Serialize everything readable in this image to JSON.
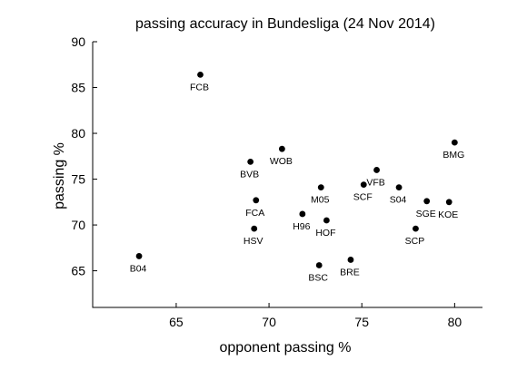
{
  "chart_data": {
    "type": "scatter",
    "title": "passing accuracy in Bundesliga (24 Nov 2014)",
    "xlabel": "opponent passing %",
    "ylabel": "passing %",
    "xlim": [
      60.5,
      81.5
    ],
    "ylim": [
      61,
      90
    ],
    "xticks": [
      65,
      70,
      75,
      80
    ],
    "yticks": [
      65,
      70,
      75,
      80,
      85,
      90
    ],
    "grid": false,
    "legend": "none",
    "points": [
      {
        "label": "FCB",
        "x": 66.3,
        "y": 86.4
      },
      {
        "label": "BMG",
        "x": 80.0,
        "y": 79.0
      },
      {
        "label": "WOB",
        "x": 70.7,
        "y": 78.3
      },
      {
        "label": "BVB",
        "x": 69.0,
        "y": 76.9
      },
      {
        "label": "VFB",
        "x": 75.8,
        "y": 76.0
      },
      {
        "label": "SCF",
        "x": 75.1,
        "y": 74.4
      },
      {
        "label": "M05",
        "x": 72.8,
        "y": 74.1
      },
      {
        "label": "S04",
        "x": 77.0,
        "y": 74.1
      },
      {
        "label": "FCA",
        "x": 69.3,
        "y": 72.7
      },
      {
        "label": "SGE",
        "x": 78.5,
        "y": 72.6
      },
      {
        "label": "KOE",
        "x": 79.7,
        "y": 72.5
      },
      {
        "label": "H96",
        "x": 71.8,
        "y": 71.2
      },
      {
        "label": "HOF",
        "x": 73.1,
        "y": 70.5
      },
      {
        "label": "HSV",
        "x": 69.2,
        "y": 69.6
      },
      {
        "label": "SCP",
        "x": 77.9,
        "y": 69.6
      },
      {
        "label": "B04",
        "x": 63.0,
        "y": 66.6
      },
      {
        "label": "BRE",
        "x": 74.4,
        "y": 66.2
      },
      {
        "label": "BSC",
        "x": 72.7,
        "y": 65.6
      }
    ]
  }
}
